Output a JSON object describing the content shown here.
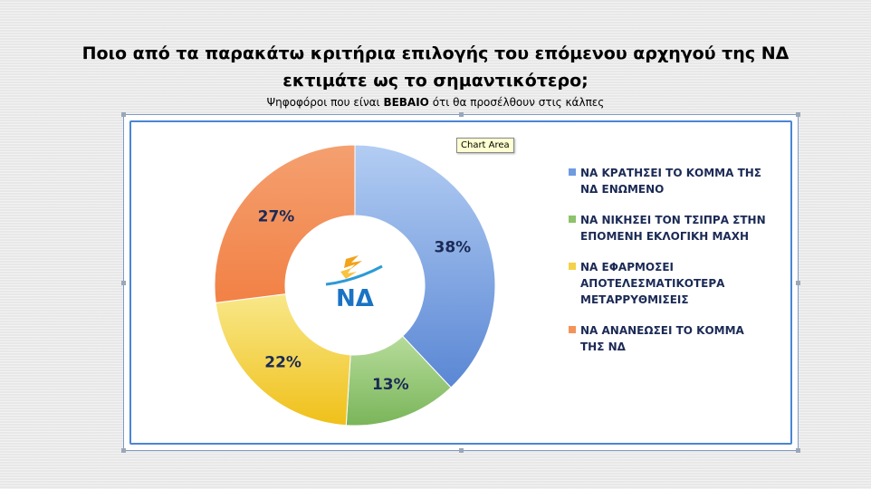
{
  "header": {
    "title_line1": "Ποιο από τα παρακάτω κριτήρια επιλογής του επόμενου αρχηγού της ΝΔ",
    "title_line2": "εκτιμάτε ως το σημαντικότερο;",
    "subtitle_pre": "Ψηφοφόροι που είναι ",
    "subtitle_bold": "ΒΕΒΑΙΟ",
    "subtitle_post": " ότι θα προσέλθουν στις κάλπες"
  },
  "tooltip": "Chart Area",
  "logo_text": "ΝΔ",
  "chart_data": {
    "type": "pie",
    "donut": true,
    "title": "",
    "legend_position": "right",
    "series": [
      {
        "name": "ΝΑ ΚΡΑΤΗΣΕΙ ΤΟ ΚΟΜΜΑ ΤΗΣ ΝΔ ΕΝΩΜΕΝΟ",
        "value": 38,
        "label": "38%",
        "color": "#6f9be0"
      },
      {
        "name": "ΝΑ ΝΙΚΗΣΕΙ ΤΟΝ ΤΣΙΠΡΑ ΣΤΗΝ ΕΠΟΜΕΝΗ ΕΚΛΟΓΙΚΗ ΜΑΧΗ",
        "value": 13,
        "label": "13%",
        "color": "#8cc36b"
      },
      {
        "name": "ΝΑ ΕΦΑΡΜΟΣΕΙ ΑΠΟΤΕΛΕΣΜΑΤΙΚΟΤΕΡΑ ΜΕΤΑΡΡΥΘΜΙΣΕΙΣ",
        "value": 22,
        "label": "22%",
        "color": "#f3d24a"
      },
      {
        "name": "ΝΑ ΑΝΑΝΕΩΣΕΙ ΤΟ ΚΟΜΜΑ ΤΗΣ ΝΔ",
        "value": 27,
        "label": "27%",
        "color": "#f49358"
      }
    ]
  }
}
